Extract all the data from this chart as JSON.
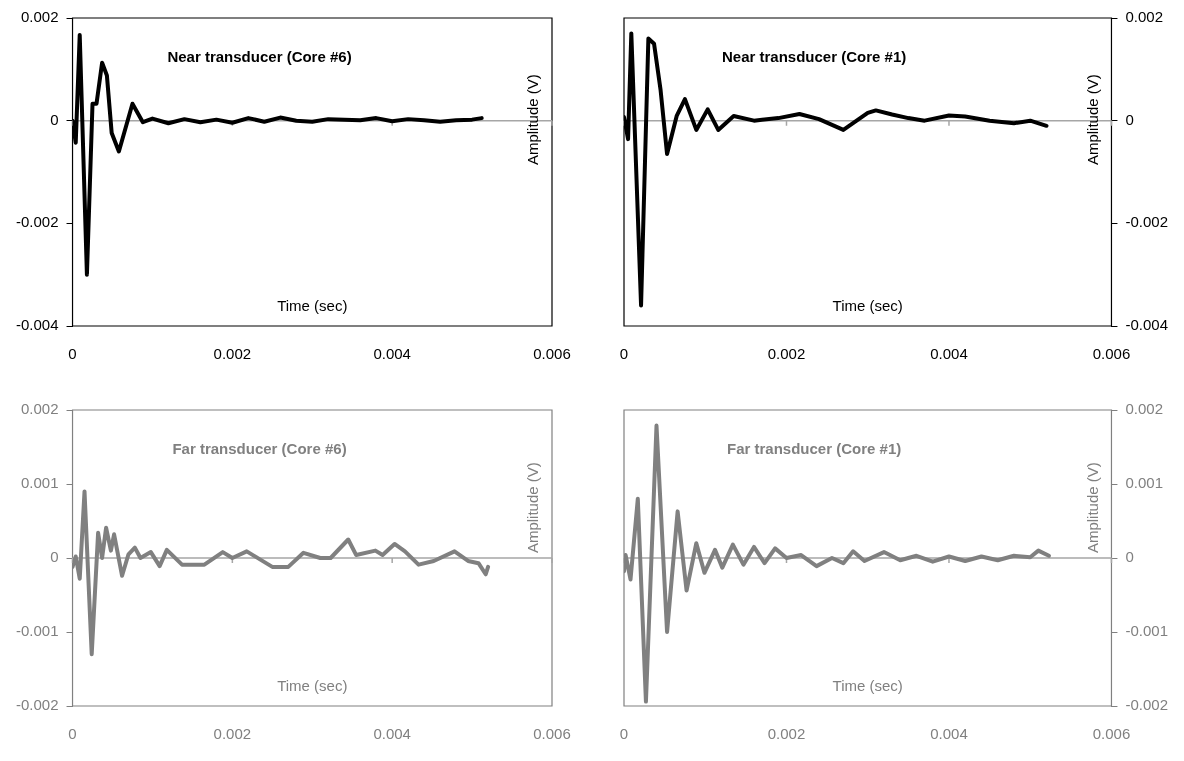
{
  "chart_data": [
    {
      "type": "line",
      "title": "Near transducer (Core #6)",
      "xlabel": "Time (sec)",
      "ylabel": "Amplitude (V)",
      "xlim": [
        0,
        0.006
      ],
      "xticks": [
        0,
        0.002,
        0.004,
        0.006
      ],
      "ylim": [
        -0.004,
        0.002
      ],
      "yticks": [
        -0.004,
        -0.002,
        0,
        0.002
      ],
      "x": [
        0,
        4e-05,
        9e-05,
        0.00018,
        0.00025,
        0.0003,
        0.00037,
        0.00043,
        0.00049,
        0.00058,
        0.00075,
        0.00088,
        0.001,
        0.0012,
        0.0014,
        0.0016,
        0.0018,
        0.002,
        0.0022,
        0.0024,
        0.0026,
        0.0028,
        0.003,
        0.0032,
        0.0034,
        0.0036,
        0.0038,
        0.004,
        0.0042,
        0.0044,
        0.0046,
        0.0048,
        0.005,
        0.00512
      ],
      "series": [
        {
          "color": "#000000",
          "values": [
            0,
            -0.00043,
            0.00167,
            -0.003,
            0.00033,
            0.00033,
            0.00113,
            0.00088,
            -0.00024,
            -0.0006,
            0.00033,
            -3e-05,
            4e-05,
            -5e-05,
            3e-05,
            -3e-05,
            2e-05,
            -4e-05,
            5e-05,
            -2e-05,
            6e-05,
            0,
            -2e-05,
            3e-05,
            2e-05,
            1e-05,
            5e-05,
            -1e-05,
            3e-05,
            1e-05,
            -2e-05,
            1e-05,
            2e-05,
            5e-05
          ]
        }
      ]
    },
    {
      "type": "line",
      "title": "Near transducer (Core #1)",
      "xlabel": "Time (sec)",
      "y2label": "Amplitude (V)",
      "xlim": [
        0,
        0.006
      ],
      "xticks": [
        0,
        0.002,
        0.004,
        0.006
      ],
      "y2lim": [
        -0.004,
        0.002
      ],
      "y2ticks": [
        -0.004,
        -0.002,
        0,
        0.002
      ],
      "x": [
        0,
        5e-05,
        9e-05,
        0.00021,
        0.0003,
        0.00037,
        0.00045,
        0.00053,
        0.00065,
        0.00075,
        0.00089,
        0.00103,
        0.00116,
        0.00135,
        0.0016,
        0.0019,
        0.00216,
        0.0024,
        0.0027,
        0.003,
        0.0031,
        0.0033,
        0.0035,
        0.0037,
        0.004,
        0.0042,
        0.0045,
        0.0048,
        0.005,
        0.0052
      ],
      "series": [
        {
          "color": "#000000",
          "axis": "y2",
          "values": [
            7e-05,
            -0.00036,
            0.0017,
            -0.0036,
            0.0016,
            0.0015,
            0.0006,
            -0.00065,
            0.0001,
            0.00042,
            -0.00018,
            0.00022,
            -0.00018,
            9e-05,
            0,
            5e-05,
            0.00013,
            3e-05,
            -0.00018,
            0.00015,
            0.0002,
            0.00012,
            5e-05,
            0,
            0.0001,
            8e-05,
            0,
            -5e-05,
            0,
            -0.0001
          ]
        }
      ]
    },
    {
      "type": "line",
      "title": "Far transducer (Core #6)",
      "xlabel": "Time (sec)",
      "ylabel": "Amplitude (V)",
      "xlim": [
        0,
        0.006
      ],
      "xticks": [
        0,
        0.002,
        0.004,
        0.006
      ],
      "ylim": [
        -0.002,
        0.002
      ],
      "yticks": [
        -0.002,
        -0.001,
        0,
        0.001,
        0.002
      ],
      "x": [
        0,
        4e-05,
        9e-05,
        0.00015,
        0.00024,
        0.00032,
        0.00037,
        0.00042,
        0.00048,
        0.00052,
        0.00062,
        0.0007,
        0.00078,
        0.00085,
        0.00098,
        0.00109,
        0.00118,
        0.00137,
        0.00165,
        0.00188,
        0.002,
        0.00218,
        0.0025,
        0.0027,
        0.00289,
        0.0031,
        0.00323,
        0.00345,
        0.00355,
        0.00379,
        0.00388,
        0.00403,
        0.00416,
        0.00433,
        0.00452,
        0.00478,
        0.00495,
        0.00508,
        0.00517,
        0.0052
      ],
      "series": [
        {
          "color": "#808080",
          "values": [
            -0.00012,
            2e-05,
            -0.00028,
            0.0009,
            -0.0013,
            0.00034,
            0,
            0.00041,
            0.0001,
            0.00032,
            -0.00024,
            5e-05,
            0.00014,
            0,
            8e-05,
            -0.00011,
            0.00011,
            -9e-05,
            -9e-05,
            8e-05,
            0,
            9e-05,
            -0.00012,
            -0.00012,
            7e-05,
            0,
            0,
            0.00025,
            4e-05,
            0.0001,
            4e-05,
            0.00019,
            9e-05,
            -9e-05,
            -4e-05,
            9e-05,
            -4e-05,
            -7e-05,
            -0.00022,
            -0.00012
          ]
        }
      ]
    },
    {
      "type": "line",
      "title": "Far transducer (Core #1)",
      "xlabel": "Time (sec)",
      "y2label": "Amplitude (V)",
      "xlim": [
        0,
        0.006
      ],
      "xticks": [
        0,
        0.002,
        0.004,
        0.006
      ],
      "y2lim": [
        -0.002,
        0.002
      ],
      "y2ticks": [
        -0.002,
        -0.001,
        0,
        0.001,
        0.002
      ],
      "x": [
        0,
        2e-05,
        8e-05,
        0.00017,
        0.00027,
        0.0004,
        0.00053,
        0.00066,
        0.00077,
        0.00089,
        0.00099,
        0.00112,
        0.00121,
        0.00134,
        0.00147,
        0.0016,
        0.00173,
        0.00186,
        0.002,
        0.00218,
        0.00237,
        0.00256,
        0.0027,
        0.00282,
        0.00296,
        0.0032,
        0.0034,
        0.0036,
        0.0038,
        0.004,
        0.0042,
        0.0044,
        0.0046,
        0.0048,
        0.005,
        0.0051,
        0.00523
      ],
      "series": [
        {
          "color": "#808080",
          "axis": "y2",
          "values": [
            -0.00018,
            4e-05,
            -0.00029,
            0.0008,
            -0.00194,
            0.00179,
            -0.001,
            0.00063,
            -0.00044,
            0.0002,
            -0.0002,
            0.00011,
            -0.00013,
            0.00018,
            -9e-05,
            0.00015,
            -7e-05,
            0.00013,
            0,
            4e-05,
            -0.00011,
            0,
            -7e-05,
            9e-05,
            -4e-05,
            8e-05,
            -3e-05,
            3e-05,
            -5e-05,
            2e-05,
            -4e-05,
            2e-05,
            -3e-05,
            3e-05,
            1e-05,
            0.0001,
            3e-05
          ]
        }
      ]
    }
  ]
}
